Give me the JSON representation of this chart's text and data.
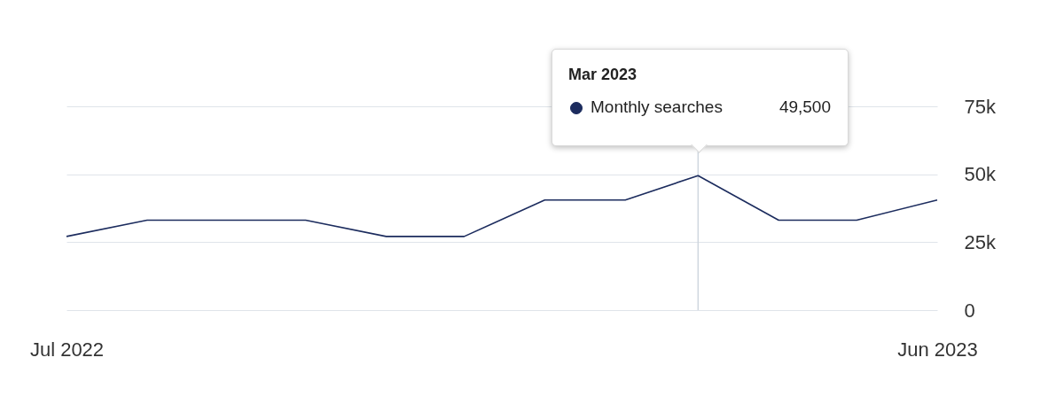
{
  "chart_data": {
    "type": "line",
    "x": [
      "2022-07",
      "2022-08",
      "2022-09",
      "2022-10",
      "2022-11",
      "2022-12",
      "2023-01",
      "2023-02",
      "2023-03",
      "2023-04",
      "2023-05",
      "2023-06"
    ],
    "series": [
      {
        "name": "Monthly searches",
        "color": "#1c2c5e",
        "values": [
          27100,
          33100,
          33100,
          33100,
          27100,
          27100,
          40500,
          40500,
          49500,
          33100,
          33100,
          40500
        ]
      }
    ],
    "xlim": [
      "2022-07",
      "2023-06"
    ],
    "xticks": [
      {
        "value": "2022-07",
        "label": "Jul 2022"
      },
      {
        "value": "2023-06",
        "label": "Jun 2023"
      }
    ],
    "ylim": [
      0,
      75000
    ],
    "yticks": [
      0,
      {
        "value": 25000,
        "label": "25k"
      },
      {
        "value": 50000,
        "label": "50k"
      },
      {
        "value": 75000,
        "label": "75k"
      }
    ],
    "grid": "y",
    "ref_lines": [
      {
        "axis": "x",
        "value": "2023-03",
        "color": "#cfd6de"
      }
    ],
    "annotations": [
      "Mar 2023",
      "49,500"
    ]
  }
}
